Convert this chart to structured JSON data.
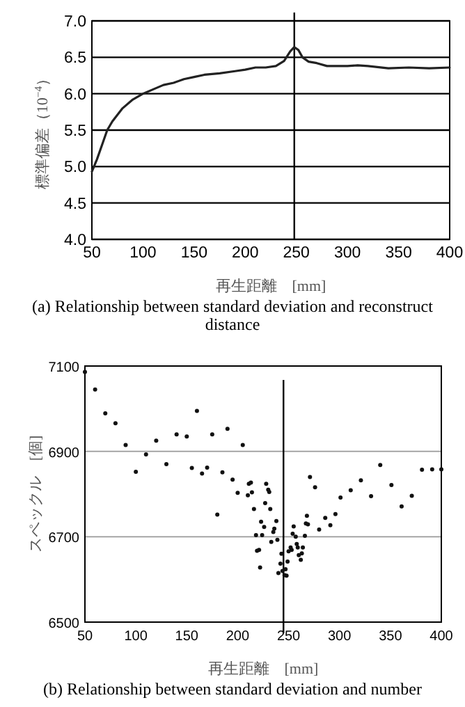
{
  "chart_data": [
    {
      "type": "line",
      "xlabel": "再生距離　[mm]",
      "ylabel": "標準偏差（10$^{−4}$）",
      "xlim": [
        50,
        400
      ],
      "ylim": [
        4.0,
        7.0
      ],
      "xticks": [
        50,
        100,
        150,
        200,
        250,
        300,
        350,
        400
      ],
      "yticks": [
        {
          "value": 4.0,
          "label": "4.0"
        },
        4.5,
        {
          "value": 5.0,
          "label": "5.0"
        },
        5.5,
        {
          "value": 6.0,
          "label": "6.0"
        },
        6.5,
        {
          "value": 7.0,
          "label": "7.0"
        }
      ],
      "grid": "y",
      "marker": "none",
      "line_style": "solid",
      "series": [
        {
          "color": "#222222",
          "x": [
            50,
            55,
            60,
            65,
            70,
            80,
            90,
            100,
            110,
            120,
            130,
            140,
            150,
            160,
            175,
            190,
            200,
            210,
            220,
            230,
            238,
            244,
            248,
            252,
            256,
            262,
            270,
            280,
            300,
            310,
            320,
            340,
            360,
            380,
            400
          ],
          "values": [
            4.93,
            5.1,
            5.3,
            5.5,
            5.62,
            5.8,
            5.92,
            6.0,
            6.06,
            6.12,
            6.15,
            6.2,
            6.23,
            6.26,
            6.28,
            6.31,
            6.33,
            6.36,
            6.36,
            6.38,
            6.45,
            6.58,
            6.64,
            6.6,
            6.5,
            6.44,
            6.42,
            6.38,
            6.38,
            6.39,
            6.38,
            6.35,
            6.36,
            6.35,
            6.36
          ]
        }
      ],
      "ref_lines": [
        {
          "axis": "x",
          "value": 248,
          "color": "#000000"
        }
      ],
      "annotations": [
        "(a) Relationship between standard deviation and reconstruct distance"
      ]
    },
    {
      "type": "scatter",
      "xlabel": "再生距離　[mm]",
      "ylabel": "スペックル　[個]",
      "xlim": [
        50,
        400
      ],
      "ylim": [
        6500,
        7100
      ],
      "xticks": [
        50,
        100,
        150,
        200,
        250,
        300,
        350,
        400
      ],
      "yticks": [
        6500,
        6700,
        6900,
        7100
      ],
      "grid": "y",
      "marker": "circle",
      "series": [
        {
          "color": "#111111",
          "x": [
            50,
            60,
            70,
            80,
            90,
            100,
            110,
            120,
            130,
            140,
            150,
            155,
            160,
            165,
            170,
            175,
            180,
            185,
            190,
            195,
            200,
            205,
            210,
            211,
            213,
            214,
            216,
            218,
            219,
            221,
            222,
            223,
            224,
            226,
            227,
            228,
            230,
            231,
            232,
            233,
            235,
            236,
            238,
            239,
            240,
            242,
            243,
            244,
            246,
            247,
            248,
            249,
            250,
            252,
            253,
            254,
            255,
            257,
            258,
            259,
            260,
            262,
            263,
            264,
            266,
            267,
            268,
            269,
            271,
            276,
            280,
            286,
            291,
            296,
            301,
            311,
            321,
            331,
            340,
            351,
            361,
            371,
            381,
            391,
            400
          ],
          "values": [
            7086,
            7045,
            6989,
            6966,
            6915,
            6852,
            6893,
            6925,
            6870,
            6940,
            6935,
            6861,
            6995,
            6848,
            6862,
            6940,
            6752,
            6851,
            6953,
            6834,
            6803,
            6915,
            6797,
            6824,
            6827,
            6804,
            6765,
            6704,
            6667,
            6669,
            6628,
            6735,
            6704,
            6723,
            6779,
            6824,
            6810,
            6805,
            6765,
            6688,
            6711,
            6719,
            6737,
            6693,
            6615,
            6637,
            6660,
            6620,
            6610,
            6624,
            6609,
            6642,
            6666,
            6675,
            6669,
            6707,
            6724,
            6700,
            6683,
            6675,
            6657,
            6646,
            6661,
            6675,
            6702,
            6731,
            6749,
            6729,
            6840,
            6816,
            6717,
            6744,
            6727,
            6753,
            6792,
            6809,
            6832,
            6795,
            6868,
            6821,
            6771,
            6796,
            6857,
            6858,
            6858
          ]
        }
      ],
      "ref_lines": [
        {
          "axis": "x",
          "value": 245,
          "color": "#000000"
        }
      ],
      "annotations": [
        "(b) Relationship between standard deviation and number"
      ]
    }
  ]
}
